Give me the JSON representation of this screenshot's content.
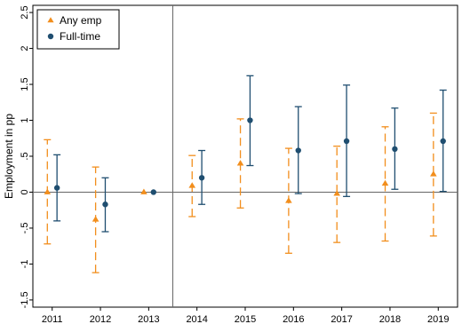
{
  "chart_data": {
    "type": "scatter",
    "title": "",
    "xlabel": "",
    "ylabel": "Employment in pp",
    "ylim": [
      -1.6,
      2.6
    ],
    "xlim": [
      2010.6,
      2019.4
    ],
    "yticks": [
      -1.5,
      -1,
      -0.5,
      0,
      0.5,
      1,
      1.5,
      2,
      2.5
    ],
    "ytick_labels": [
      "-1.5",
      "-1",
      "-.5",
      "0",
      ".5",
      "1",
      "1.5",
      "2",
      "2.5"
    ],
    "x": [
      2011,
      2012,
      2013,
      2014,
      2015,
      2016,
      2017,
      2018,
      2019
    ],
    "xtick_labels": [
      "2011",
      "2012",
      "2013",
      "2014",
      "2015",
      "2016",
      "2017",
      "2018",
      "2019"
    ],
    "reference_line_y": 0,
    "event_line_x": 2013.5,
    "grid": false,
    "legend_position": "top-left",
    "series": [
      {
        "name": "Any emp",
        "marker": "triangle",
        "error_bar_style": "dashed",
        "color": "#f28e1c",
        "offset": -0.1,
        "values": [
          0.0,
          -0.38,
          0.0,
          0.09,
          0.4,
          -0.12,
          -0.02,
          0.12,
          0.25
        ],
        "ci_low": [
          -0.72,
          -1.12,
          0.0,
          -0.34,
          -0.22,
          -0.85,
          -0.7,
          -0.68,
          -0.61
        ],
        "ci_high": [
          0.73,
          0.35,
          0.0,
          0.51,
          1.02,
          0.61,
          0.64,
          0.91,
          1.1
        ]
      },
      {
        "name": "Full-time",
        "marker": "circle",
        "error_bar_style": "solid",
        "color": "#1f4e70",
        "offset": 0.1,
        "values": [
          0.06,
          -0.17,
          0.0,
          0.2,
          1.0,
          0.58,
          0.71,
          0.6,
          0.71
        ],
        "ci_low": [
          -0.4,
          -0.55,
          0.0,
          -0.17,
          0.37,
          -0.02,
          -0.06,
          0.04,
          0.01
        ],
        "ci_high": [
          0.52,
          0.2,
          0.0,
          0.58,
          1.62,
          1.19,
          1.49,
          1.17,
          1.42
        ]
      }
    ]
  }
}
